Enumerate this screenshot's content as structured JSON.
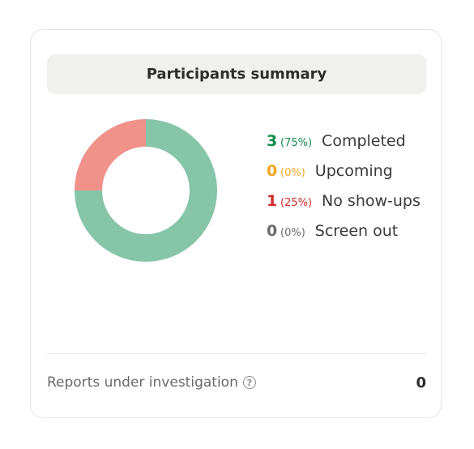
{
  "summary": {
    "title": "Participants summary"
  },
  "chart_data": {
    "type": "pie",
    "categories": [
      "Completed",
      "Upcoming",
      "No show-ups",
      "Screen out"
    ],
    "values": [
      3,
      0,
      1,
      0
    ],
    "percent_labels": [
      "(75%)",
      "(0%)",
      "(25%)",
      "(0%)"
    ],
    "colors": [
      "#86c5a7",
      "#f2b135",
      "#f0918a",
      "#8a8a8a"
    ],
    "text_colors": [
      "#0f8a4a",
      "#f2a623",
      "#d42a2a",
      "#6b6b6b"
    ]
  },
  "legend": [
    {
      "count": "3",
      "percent": "(75%)",
      "label": "Completed"
    },
    {
      "count": "0",
      "percent": "(0%)",
      "label": "Upcoming"
    },
    {
      "count": "1",
      "percent": "(25%)",
      "label": "No show-ups"
    },
    {
      "count": "0",
      "percent": "(0%)",
      "label": "Screen out"
    }
  ],
  "footer": {
    "label": "Reports under investigation",
    "help_icon": "question-circle-icon",
    "help_glyph": "?",
    "value": "0"
  }
}
